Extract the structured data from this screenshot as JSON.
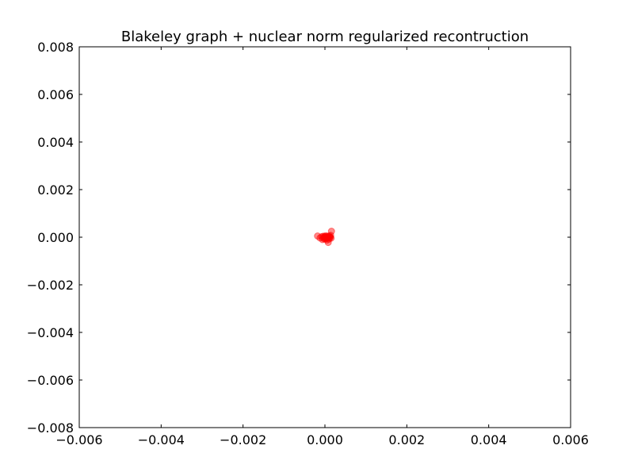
{
  "chart_data": {
    "type": "scatter",
    "title": "Blakeley graph + nuclear norm regularized recontruction",
    "xlabel": "",
    "ylabel": "",
    "xlim": [
      -0.006,
      0.006
    ],
    "ylim": [
      -0.008,
      0.008
    ],
    "x_ticks": [
      -0.006,
      -0.004,
      -0.002,
      0.0,
      0.002,
      0.004,
      0.006
    ],
    "x_tick_labels": [
      "−0.006",
      "−0.004",
      "−0.002",
      "0.000",
      "0.002",
      "0.004",
      "0.006"
    ],
    "y_ticks": [
      0.008,
      0.006,
      0.004,
      0.002,
      0.0,
      -0.002,
      -0.004,
      -0.006,
      -0.008
    ],
    "y_tick_labels": [
      "0.008",
      "0.006",
      "0.004",
      "0.002",
      "0.000",
      "−0.002",
      "−0.004",
      "−0.006",
      "−0.008"
    ],
    "grid": false,
    "marker_color": "#ff0000",
    "marker_alpha": 0.45,
    "points": [
      {
        "x": -0.00018,
        "y": 5e-05
      },
      {
        "x": -0.00012,
        "y": -3e-05
      },
      {
        "x": -8e-05,
        "y": 2e-05
      },
      {
        "x": -6e-05,
        "y": -0.0001
      },
      {
        "x": -4e-05,
        "y": 4e-05
      },
      {
        "x": -3e-05,
        "y": -5e-05
      },
      {
        "x": -2e-05,
        "y": 1e-05
      },
      {
        "x": 0.0,
        "y": -8e-05
      },
      {
        "x": 0.0,
        "y": 3e-05
      },
      {
        "x": 1e-05,
        "y": -2e-05
      },
      {
        "x": 2e-05,
        "y": 6e-05
      },
      {
        "x": 3e-05,
        "y": -6e-05
      },
      {
        "x": 4e-05,
        "y": 0.0
      },
      {
        "x": 5e-05,
        "y": -0.00012
      },
      {
        "x": 6e-05,
        "y": 4e-05
      },
      {
        "x": 7e-05,
        "y": -3e-05
      },
      {
        "x": 8e-05,
        "y": -0.00022
      },
      {
        "x": 9e-05,
        "y": 2e-05
      },
      {
        "x": 0.0001,
        "y": -8e-05
      },
      {
        "x": 0.00011,
        "y": 5e-05
      },
      {
        "x": 0.00012,
        "y": -1e-05
      },
      {
        "x": 0.00013,
        "y": 0.0
      },
      {
        "x": 0.00014,
        "y": 8e-05
      },
      {
        "x": 0.00015,
        "y": -4e-05
      },
      {
        "x": 0.00016,
        "y": 0.00025
      }
    ]
  }
}
